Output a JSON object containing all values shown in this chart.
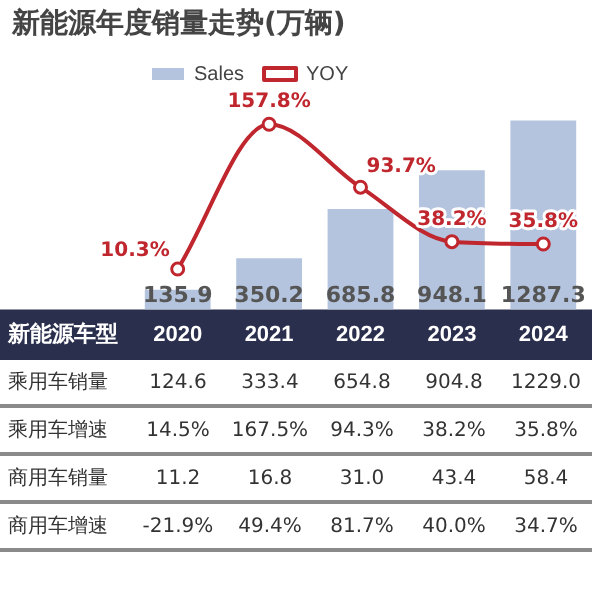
{
  "chart_data": [
    {
      "type": "bar",
      "title": "新能源年度销量走势(万辆)",
      "xlabel": "新能源车型",
      "categories": [
        "2020",
        "2021",
        "2022",
        "2023",
        "2024"
      ],
      "tick_labels": "x",
      "legend": "top left",
      "marker": "circle",
      "series": [
        {
          "name": "Sales",
          "type": "bar",
          "color": "#b4c4de",
          "values": [
            135.9,
            350.2,
            685.8,
            948.1,
            1287.3
          ],
          "value_labels": [
            "135.9",
            "350.2",
            "685.8",
            "948.1",
            "1287.3"
          ]
        },
        {
          "name": "YOY",
          "type": "line",
          "axis": "y2",
          "color": "#c0262d",
          "values": [
            10.3,
            157.8,
            93.7,
            38.2,
            35.8
          ],
          "value_labels": [
            "10.3%",
            "157.8%",
            "93.7%",
            "38.2%",
            "35.8%"
          ]
        }
      ]
    },
    {
      "type": "other",
      "y_categories": [
        "乘用车销量",
        "乘用车增速",
        "商用车销量",
        "商用车增速"
      ],
      "cell_labels": [
        [
          "124.6",
          "333.4",
          "654.8",
          "904.8",
          "1229.0"
        ],
        [
          "14.5%",
          "167.5%",
          "94.3%",
          "38.2%",
          "35.8%"
        ],
        [
          "11.2",
          "16.8",
          "31.0",
          "43.4",
          "58.4"
        ],
        [
          "-21.9%",
          "49.4%",
          "81.7%",
          "40.0%",
          "34.7%"
        ]
      ]
    }
  ]
}
